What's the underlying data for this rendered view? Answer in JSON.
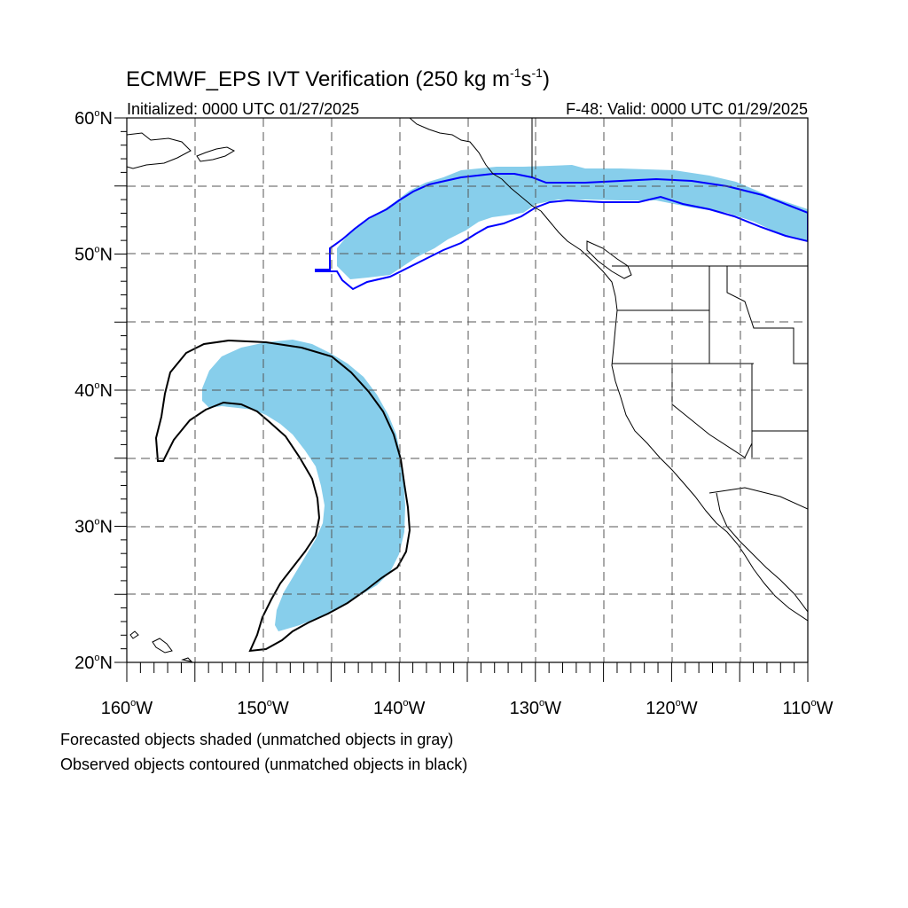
{
  "title": {
    "main": "ECMWF_EPS IVT Verification (250 kg m",
    "sup1": "-1",
    "mid": "s",
    "sup2": "-1",
    "end": ")"
  },
  "subtitle_left": "Initialized: 0000 UTC 01/27/2025",
  "subtitle_right": "F-48: Valid: 0000 UTC 01/29/2025",
  "lat_labels": [
    {
      "num": "60",
      "deg": "o",
      "hem": "N",
      "value": 60
    },
    {
      "num": "50",
      "deg": "o",
      "hem": "N",
      "value": 50
    },
    {
      "num": "40",
      "deg": "o",
      "hem": "N",
      "value": 40
    },
    {
      "num": "30",
      "deg": "o",
      "hem": "N",
      "value": 30
    },
    {
      "num": "20",
      "deg": "o",
      "hem": "N",
      "value": 20
    }
  ],
  "lon_labels": [
    {
      "num": "160",
      "deg": "o",
      "hem": "W",
      "value": -160
    },
    {
      "num": "150",
      "deg": "o",
      "hem": "W",
      "value": -150
    },
    {
      "num": "140",
      "deg": "o",
      "hem": "W",
      "value": -140
    },
    {
      "num": "130",
      "deg": "o",
      "hem": "W",
      "value": -130
    },
    {
      "num": "120",
      "deg": "o",
      "hem": "W",
      "value": -120
    },
    {
      "num": "110",
      "deg": "o",
      "hem": "W",
      "value": -110
    }
  ],
  "map_extent": {
    "lon_min": -160,
    "lon_max": -110,
    "lat_min": 20,
    "lat_max": 60
  },
  "gridline_interval_deg": 5,
  "colors": {
    "forecast_fill": "#87ceeb",
    "observed_matched": "#0000ff",
    "observed_unmatched": "#000000",
    "coastline": "#000000",
    "grid": "#555555"
  },
  "caption_line1": "Forecasted objects shaded (unmatched objects in gray)",
  "caption_line2": "Observed objects contoured (unmatched objects in black)"
}
